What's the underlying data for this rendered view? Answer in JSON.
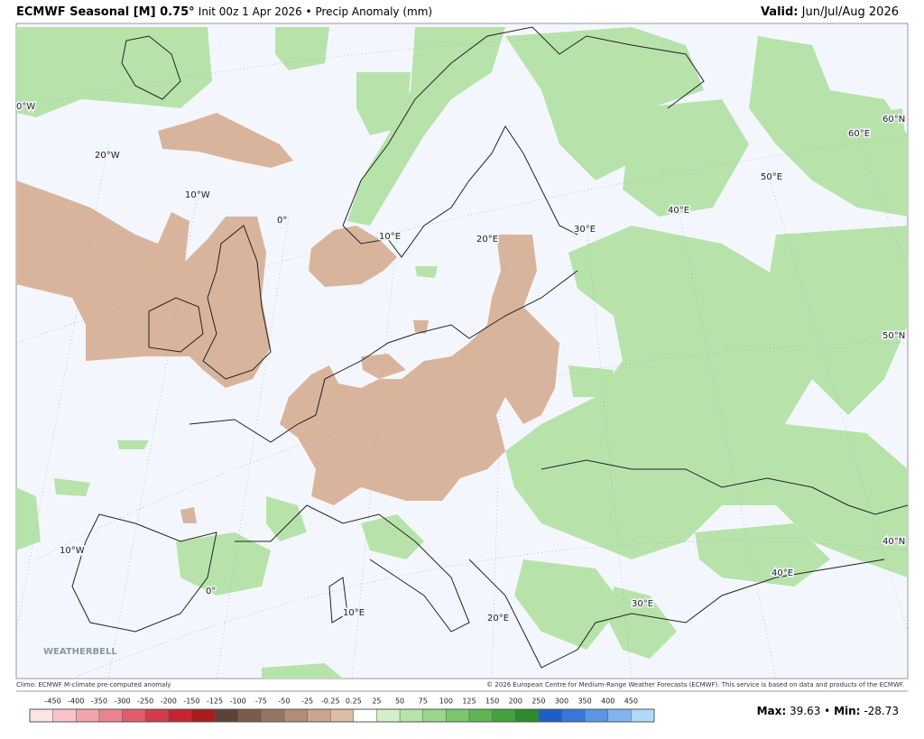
{
  "header": {
    "title_bold": "ECMWF Seasonal [M] 0.75°",
    "title_rest": "Init 00z 1 Apr 2026 • Precip Anomaly (mm)",
    "valid_label": "Valid:",
    "valid_value": "Jun/Jul/Aug 2026"
  },
  "map": {
    "labels": [
      "0°W",
      "20°W",
      "10°W",
      "0°",
      "10°E",
      "20°E",
      "30°E",
      "40°E",
      "50°E",
      "60°E",
      "60°N",
      "50°N",
      "40°N",
      "10°W",
      "0°",
      "10°E",
      "20°E",
      "30°E",
      "40°E"
    ],
    "logo": "WEATHERBELL"
  },
  "footer": {
    "climo": "Climo: ECMWF M-climate pre-computed anomaly",
    "copyright": "© 2026 European Centre for Medium-Range Weather Forecasts (ECMWF). This service is based on data and products of the ECMWF."
  },
  "colorbar": {
    "labels": [
      -450,
      -400,
      -350,
      -300,
      -250,
      -200,
      -150,
      -125,
      -100,
      -75,
      -50,
      -25,
      -0.25,
      0.25,
      25,
      50,
      75,
      100,
      125,
      150,
      200,
      250,
      300,
      350,
      400,
      450
    ],
    "colors": [
      "#fde3e6",
      "#f8c4ca",
      "#f2a3ab",
      "#ea838d",
      "#df5e6b",
      "#d33c4b",
      "#c42530",
      "#a81d1f",
      "#5c4338",
      "#7a5c4c",
      "#957562",
      "#b08e79",
      "#c9a58d",
      "#dcbca3",
      "#ffffff",
      "#d3efc9",
      "#b6e3a8",
      "#98d689",
      "#7bc76c",
      "#5fb552",
      "#46a03d",
      "#2f8a2f",
      "#1f5fc5",
      "#3878db",
      "#5a95e6",
      "#82b4ef",
      "#b2d9f7"
    ]
  },
  "stats": {
    "max_label": "Max:",
    "max": 39.63,
    "separator": "•",
    "min_label": "Min:",
    "min": -28.73
  }
}
